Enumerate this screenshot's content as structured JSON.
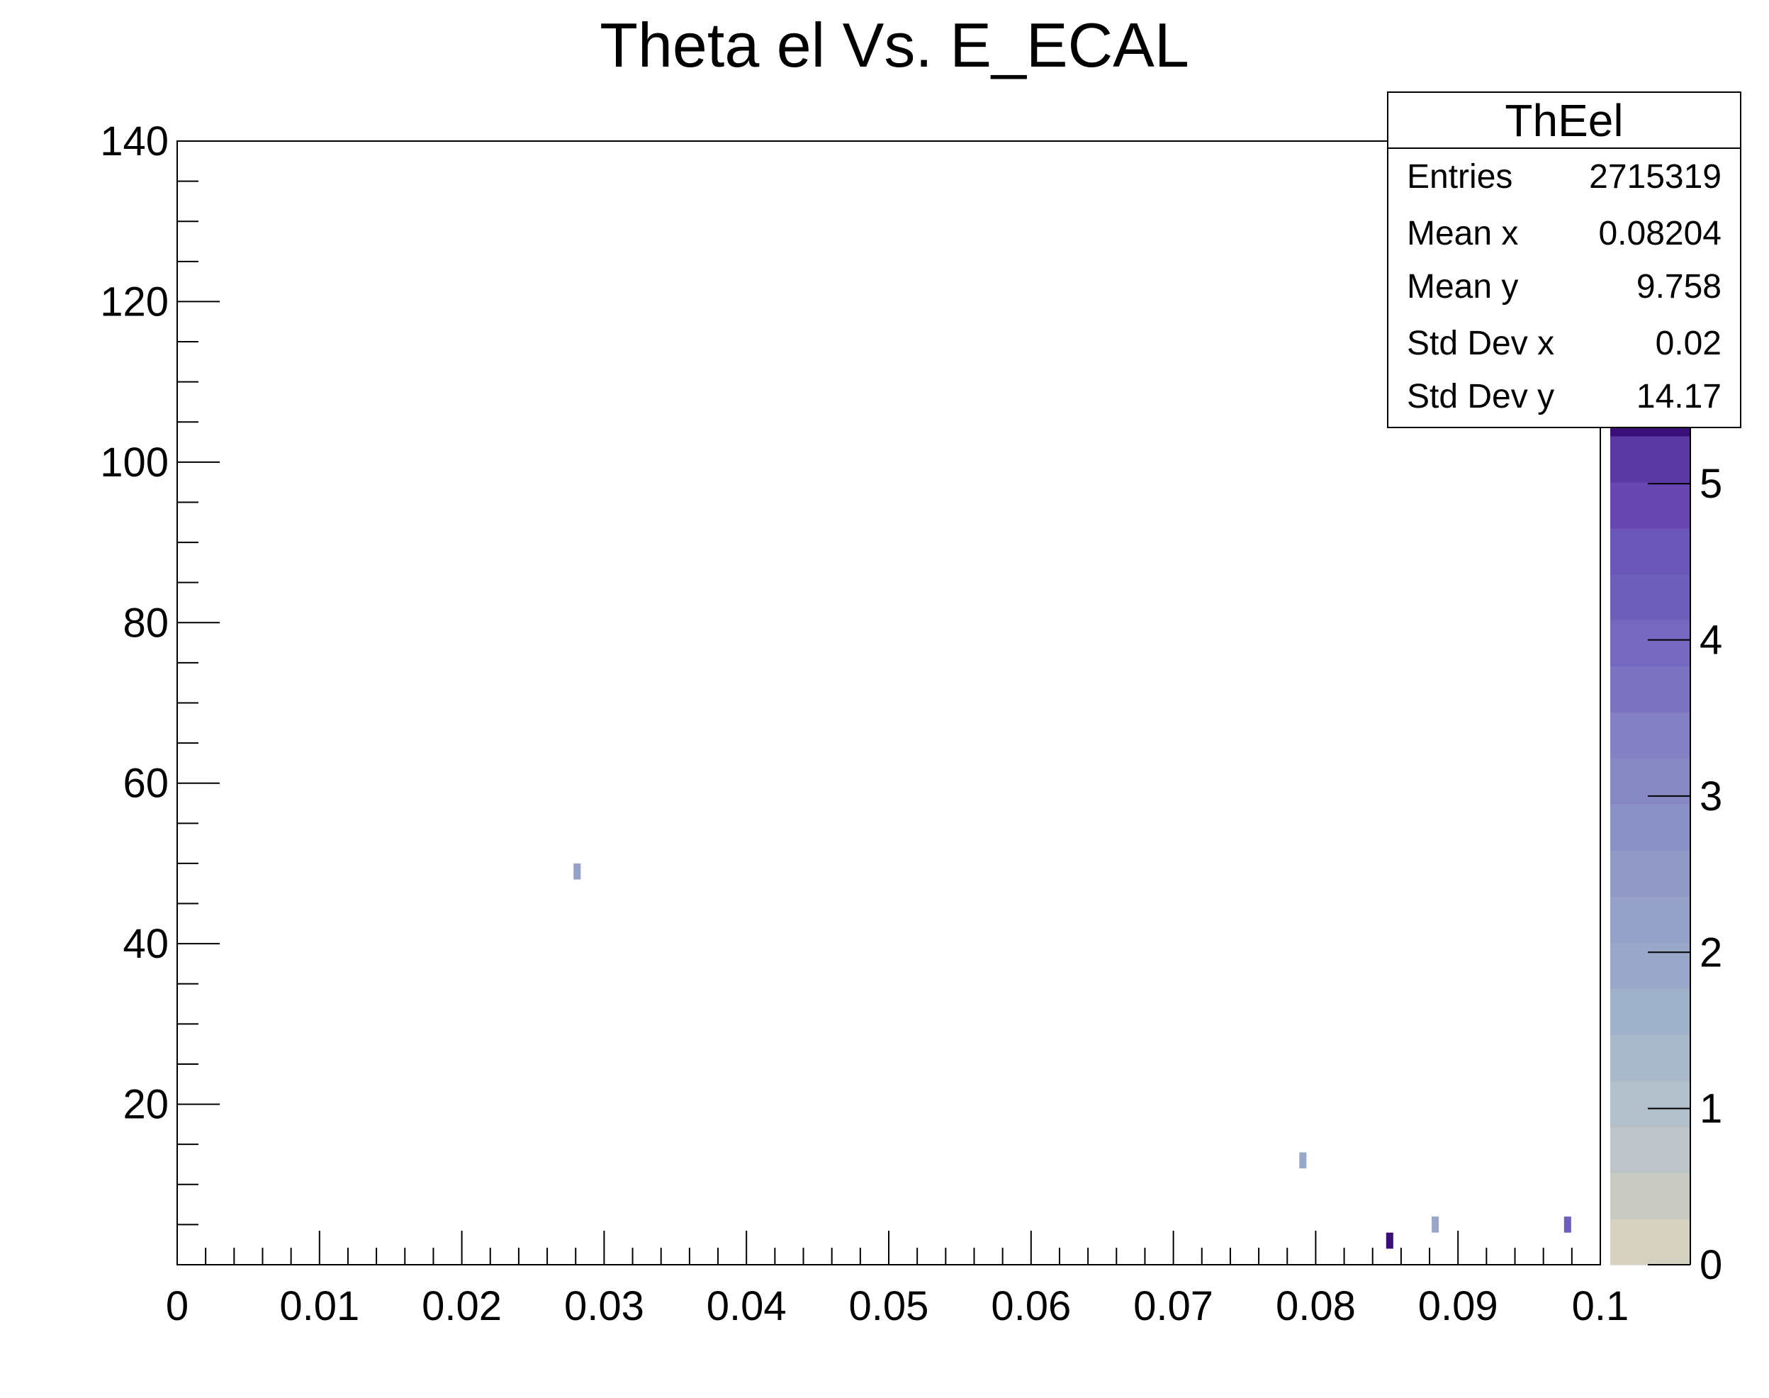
{
  "chart_data": {
    "type": "heatmap",
    "title": "Theta el Vs. E_ECAL",
    "xlabel": "",
    "ylabel": "",
    "xlim": [
      0,
      0.1
    ],
    "ylim": [
      0,
      140
    ],
    "x_ticks": [
      "0",
      "0.01",
      "0.02",
      "0.03",
      "0.04",
      "0.05",
      "0.06",
      "0.07",
      "0.08",
      "0.09",
      "0.1"
    ],
    "y_ticks": [
      "20",
      "40",
      "60",
      "80",
      "100",
      "120",
      "140"
    ],
    "z_ticks": [
      "0",
      "1",
      "2",
      "3",
      "4",
      "5"
    ],
    "zlim": [
      0,
      5.6
    ],
    "grid": false,
    "cells": [
      {
        "x": 0.0281,
        "y": 49.0,
        "z": 2.2
      },
      {
        "x": 0.0791,
        "y": 13.0,
        "z": 2.0
      },
      {
        "x": 0.0852,
        "y": 3.0,
        "z": 5.6
      },
      {
        "x": 0.0884,
        "y": 5.0,
        "z": 2.0
      },
      {
        "x": 0.0977,
        "y": 5.0,
        "z": 4.2
      }
    ],
    "palette": [
      "#d5d1c1",
      "#c9cbc3",
      "#bec5c9",
      "#b2c0cb",
      "#a9b9cb",
      "#9fb2c9",
      "#99a8c8",
      "#95a1c7",
      "#9299c6",
      "#8c91c5",
      "#8888c4",
      "#8580c4",
      "#7c73c2",
      "#7668c0",
      "#6f5fbc",
      "#6a55b8",
      "#6648b0",
      "#5c3aa6",
      "#3a0f78"
    ]
  },
  "stats_box": {
    "title": "ThEel",
    "rows": [
      {
        "label": "Entries",
        "value": "2715319"
      },
      {
        "label": "Mean x",
        "value": "0.08204"
      },
      {
        "label": "Mean y",
        "value": "9.758"
      },
      {
        "label": "Std Dev x",
        "value": "0.02"
      },
      {
        "label": "Std Dev y",
        "value": "14.17"
      }
    ]
  }
}
